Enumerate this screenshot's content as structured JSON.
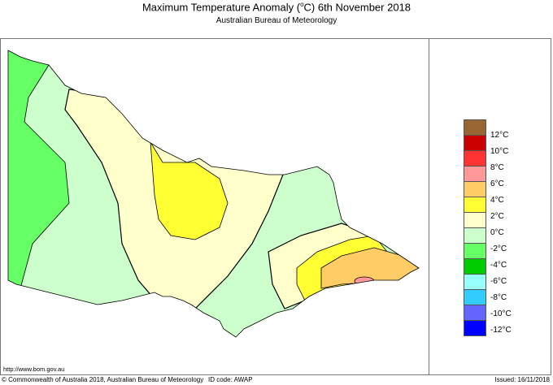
{
  "header": {
    "title": "Maximum Temperature Anomaly (",
    "title_unit": "o",
    "title_rest": "C)  6th November 2018",
    "subtitle": "Australian Bureau of Meteorology"
  },
  "legend": {
    "colors": [
      "#996633",
      "#cc0000",
      "#ff3333",
      "#ff9999",
      "#ffcc66",
      "#ffff33",
      "#ffffcc",
      "#ccffcc",
      "#66ff66",
      "#00cc00",
      "#99ffff",
      "#33ccff",
      "#6666ff",
      "#0000ff"
    ],
    "labels": [
      "12°C",
      "10°C",
      "8°C",
      "6°C",
      "4°C",
      "2°C",
      "0°C",
      "-2°C",
      "-4°C",
      "-6°C",
      "-8°C",
      "-10°C",
      "-12°C"
    ]
  },
  "map": {
    "region": "Victoria",
    "zone_colors": {
      "default": "#ccffcc",
      "west": "#66ff66",
      "warm": "#ffffcc",
      "hot": "#ffff33",
      "hotter": "#ffcc66",
      "hottest": "#ff9999"
    }
  },
  "footer": {
    "url": "http://www.bom.gov.au",
    "copyright": "© Commonwealth of Australia 2018, Australian Bureau of Meteorology",
    "id_code": "ID code: AWAP",
    "issued": "Issued: 16/11/2018"
  }
}
